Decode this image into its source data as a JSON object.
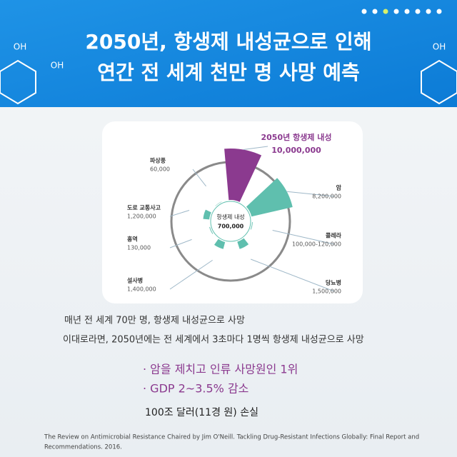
{
  "chart_data": {
    "type": "polar",
    "title": [
      "2050년, 항생제 내성균으로 인해",
      "연간 전 세계 천만 명 사망 예측"
    ],
    "categories": [
      "2050년 항생제 내성",
      "암",
      "콜레라",
      "당뇨병",
      "설사병",
      "홍역",
      "도로 교통사고",
      "파상풍"
    ],
    "values": [
      10000000,
      8200000,
      120000,
      1500000,
      1400000,
      130000,
      1200000,
      60000
    ],
    "value_labels": [
      "10,000,000",
      "8,200,000",
      "100,000-120,000",
      "1,500,000",
      "1,400,000",
      "130,000",
      "1,200,000",
      "60,000"
    ],
    "colors": [
      "#8b3a8f",
      "#5fbfae",
      "#5fbfae",
      "#5fbfae",
      "#5fbfae",
      "#5fbfae",
      "#5fbfae",
      "#5fbfae"
    ],
    "center_label": "항생제 내성",
    "center_value": 700000,
    "center_value_label": "700,000",
    "notes": [
      "매년 전 세계  70만 명, 항생제 내성균으로 사망",
      "이대로라면, 2050년에는 전 세계에서 3초마다 1명씩 항생제 내성균으로 사망"
    ],
    "bullets": [
      "· 암을 제치고 인류 사망원인 1위",
      "· GDP 2~3.5% 감소"
    ],
    "loss": "100조 달러(11경 원) 손실",
    "source": [
      "The Review on Antimicrobial Resistance Chaired by Jim O'Neill. Tackling Drug-Resistant Infections Globally: Final Report and",
      "Recommendations. 2016."
    ],
    "molecule_labels": [
      "OH",
      "OH",
      "OH"
    ]
  }
}
